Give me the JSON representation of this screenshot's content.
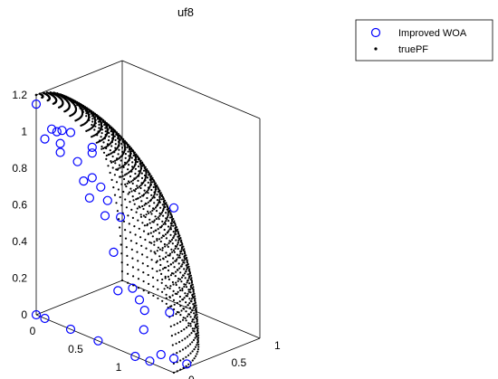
{
  "chart_data": {
    "type": "scatter",
    "title": "uf8",
    "xlabel": "",
    "ylabel": "",
    "zlabel": "",
    "grid": false,
    "legend_position": "top-right",
    "axes": {
      "x_ticks": [
        "0",
        "0.5",
        "1",
        "1.5"
      ],
      "y_ticks": [
        "0",
        "0.5",
        "1"
      ],
      "z_ticks": [
        "0",
        "0.2",
        "0.4",
        "0.6",
        "0.8",
        "1",
        "1.2"
      ],
      "x_range": [
        0,
        1.6
      ],
      "y_range": [
        0,
        1.0
      ],
      "z_range": [
        0,
        1.2
      ]
    },
    "series": [
      {
        "name": "Improved WOA",
        "marker": "circle-open",
        "color": "#0000ff",
        "points": [
          [
            0.0,
            0.0,
            1.15
          ],
          [
            0.1,
            0.0,
            0.98
          ],
          [
            0.62,
            0.0,
            0.76
          ],
          [
            0.95,
            0.3,
            0.05
          ],
          [
            0.85,
            0.05,
            0.5
          ],
          [
            0.7,
            0.1,
            0.66
          ],
          [
            0.5,
            0.05,
            0.82
          ],
          [
            0.4,
            0.08,
            0.9
          ],
          [
            0.25,
            0.03,
            0.93
          ],
          [
            0.4,
            0.25,
            0.78
          ],
          [
            0.55,
            0.28,
            0.68
          ],
          [
            0.45,
            0.3,
            0.73
          ],
          [
            0.6,
            0.38,
            0.58
          ],
          [
            0.15,
            0.5,
            0.85
          ],
          [
            0.05,
            0.6,
            0.78
          ],
          [
            0.2,
            0.08,
            0.96
          ],
          [
            0.0,
            0.18,
            0.98
          ],
          [
            0.04,
            0.2,
            0.97
          ],
          [
            0.0,
            0.3,
            0.95
          ],
          [
            0.0,
            0.4,
            0.92
          ],
          [
            0.0,
            0.0,
            0.0
          ],
          [
            0.1,
            0.0,
            0.0
          ],
          [
            0.4,
            0.0,
            0.0
          ],
          [
            0.72,
            0.0,
            0.0
          ],
          [
            1.15,
            0.0,
            0.0
          ],
          [
            1.3,
            0.02,
            0.0
          ],
          [
            1.4,
            0.05,
            0.05
          ],
          [
            1.5,
            0.05,
            0.3
          ],
          [
            1.6,
            0.0,
            0.9
          ],
          [
            1.2,
            0.06,
            0.25
          ],
          [
            1.1,
            0.1,
            0.28
          ],
          [
            1.0,
            0.12,
            0.32
          ],
          [
            0.9,
            0.05,
            0.3
          ],
          [
            1.4,
            0.2,
            0.0
          ],
          [
            1.55,
            0.2,
            0.0
          ]
        ]
      },
      {
        "name": "truePF",
        "marker": "dot",
        "color": "#000000",
        "surface": "quarter-sphere"
      }
    ]
  }
}
